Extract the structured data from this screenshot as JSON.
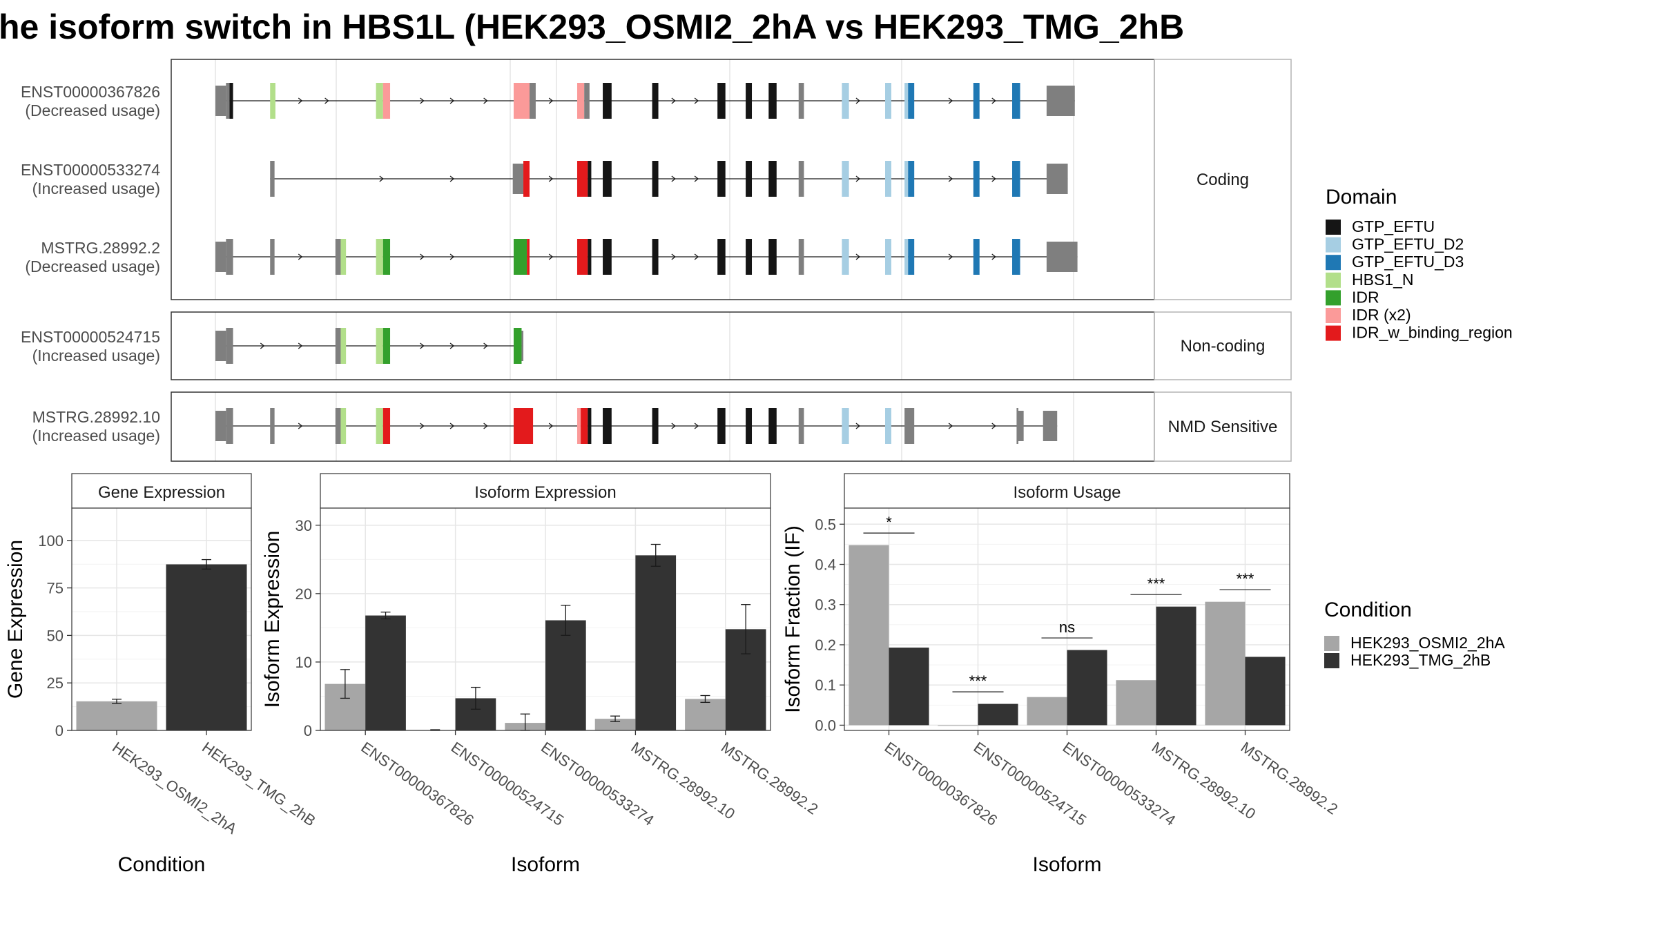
{
  "title": "he isoform switch in HBS1L (HEK293_OSMI2_2hA vs HEK293_TMG_2hB",
  "colors": {
    "GTP_EFTU": "#151515",
    "GTP_EFTU_D2": "#a6cee3",
    "GTP_EFTU_D3": "#1f78b4",
    "HBS1_N": "#b2df8a",
    "IDR": "#33a02c",
    "IDR (x2)": "#fb9a99",
    "IDR_w_binding_region": "#e31a1c",
    "exon_gray": "#7f7f7f",
    "cond_a": "#a6a6a6",
    "cond_b": "#333333"
  },
  "structure": {
    "domain_legend_title": "Domain",
    "domain_legend": [
      "GTP_EFTU",
      "GTP_EFTU_D2",
      "GTP_EFTU_D3",
      "HBS1_N",
      "IDR",
      "IDR (x2)",
      "IDR_w_binding_region"
    ],
    "panels": [
      {
        "label": "Coding",
        "transcripts": [
          0,
          1,
          2
        ]
      },
      {
        "label": "Non-coding",
        "transcripts": [
          3
        ]
      },
      {
        "label": "NMD Sensitive",
        "transcripts": [
          4
        ]
      }
    ],
    "transcripts": [
      {
        "name": "ENST00000367826",
        "usage": "(Decreased usage)",
        "segments": [
          {
            "f": "exon_gray",
            "s": 0.0,
            "e": 0.012,
            "h": 2
          },
          {
            "f": "exon_gray",
            "s": 0.012,
            "e": 0.016,
            "h": 3
          },
          {
            "f": "GTP_EFTU",
            "s": 0.016,
            "e": 0.02,
            "h": 3
          },
          {
            "f": "HBS1_N",
            "s": 0.062,
            "e": 0.068,
            "h": 3
          },
          {
            "f": "HBS1_N",
            "s": 0.182,
            "e": 0.19,
            "h": 3
          },
          {
            "f": "IDR (x2)",
            "s": 0.19,
            "e": 0.198,
            "h": 3
          },
          {
            "f": "IDR (x2)",
            "s": 0.338,
            "e": 0.356,
            "h": 3
          },
          {
            "f": "exon_gray",
            "s": 0.356,
            "e": 0.363,
            "h": 3
          },
          {
            "f": "IDR (x2)",
            "s": 0.41,
            "e": 0.418,
            "h": 3
          },
          {
            "f": "exon_gray",
            "s": 0.418,
            "e": 0.424,
            "h": 3
          },
          {
            "f": "GTP_EFTU",
            "s": 0.439,
            "e": 0.449,
            "h": 3
          },
          {
            "f": "GTP_EFTU",
            "s": 0.495,
            "e": 0.502,
            "h": 3
          },
          {
            "f": "GTP_EFTU",
            "s": 0.569,
            "e": 0.578,
            "h": 3
          },
          {
            "f": "GTP_EFTU",
            "s": 0.601,
            "e": 0.608,
            "h": 3
          },
          {
            "f": "GTP_EFTU",
            "s": 0.627,
            "e": 0.636,
            "h": 3
          },
          {
            "f": "exon_gray",
            "s": 0.661,
            "e": 0.667,
            "h": 3
          },
          {
            "f": "GTP_EFTU_D2",
            "s": 0.71,
            "e": 0.718,
            "h": 3
          },
          {
            "f": "GTP_EFTU_D2",
            "s": 0.759,
            "e": 0.766,
            "h": 3
          },
          {
            "f": "GTP_EFTU_D2",
            "s": 0.781,
            "e": 0.785,
            "h": 3
          },
          {
            "f": "GTP_EFTU_D3",
            "s": 0.785,
            "e": 0.792,
            "h": 3
          },
          {
            "f": "GTP_EFTU_D3",
            "s": 0.859,
            "e": 0.866,
            "h": 3
          },
          {
            "f": "GTP_EFTU_D3",
            "s": 0.903,
            "e": 0.912,
            "h": 3
          },
          {
            "f": "exon_gray",
            "s": 0.942,
            "e": 0.974,
            "h": 2
          }
        ],
        "arrows": [
          0.098,
          0.128,
          0.236,
          0.27,
          0.308,
          0.382,
          0.521,
          0.547,
          0.73,
          0.835,
          0.884
        ]
      },
      {
        "name": "ENST00000533274",
        "usage": "(Increased usage)",
        "segments": [
          {
            "f": "exon_gray",
            "s": 0.062,
            "e": 0.067,
            "h": 3
          },
          {
            "f": "exon_gray",
            "s": 0.337,
            "e": 0.349,
            "h": 2
          },
          {
            "f": "IDR_w_binding_region",
            "s": 0.349,
            "e": 0.356,
            "h": 3
          },
          {
            "f": "IDR_w_binding_region",
            "s": 0.41,
            "e": 0.422,
            "h": 3
          },
          {
            "f": "GTP_EFTU",
            "s": 0.422,
            "e": 0.426,
            "h": 3
          },
          {
            "f": "GTP_EFTU",
            "s": 0.439,
            "e": 0.449,
            "h": 3
          },
          {
            "f": "GTP_EFTU",
            "s": 0.495,
            "e": 0.502,
            "h": 3
          },
          {
            "f": "GTP_EFTU",
            "s": 0.569,
            "e": 0.578,
            "h": 3
          },
          {
            "f": "GTP_EFTU",
            "s": 0.601,
            "e": 0.608,
            "h": 3
          },
          {
            "f": "GTP_EFTU",
            "s": 0.627,
            "e": 0.636,
            "h": 3
          },
          {
            "f": "exon_gray",
            "s": 0.661,
            "e": 0.667,
            "h": 3
          },
          {
            "f": "GTP_EFTU_D2",
            "s": 0.71,
            "e": 0.718,
            "h": 3
          },
          {
            "f": "GTP_EFTU_D2",
            "s": 0.759,
            "e": 0.766,
            "h": 3
          },
          {
            "f": "GTP_EFTU_D2",
            "s": 0.781,
            "e": 0.785,
            "h": 3
          },
          {
            "f": "GTP_EFTU_D3",
            "s": 0.785,
            "e": 0.792,
            "h": 3
          },
          {
            "f": "GTP_EFTU_D3",
            "s": 0.859,
            "e": 0.866,
            "h": 3
          },
          {
            "f": "GTP_EFTU_D3",
            "s": 0.903,
            "e": 0.912,
            "h": 3
          },
          {
            "f": "exon_gray",
            "s": 0.942,
            "e": 0.966,
            "h": 2
          }
        ],
        "arrows": [
          0.19,
          0.27,
          0.382,
          0.521,
          0.547,
          0.73,
          0.835,
          0.884
        ]
      },
      {
        "name": "MSTRG.28992.2",
        "usage": "(Decreased usage)",
        "segments": [
          {
            "f": "exon_gray",
            "s": 0.0,
            "e": 0.012,
            "h": 2
          },
          {
            "f": "exon_gray",
            "s": 0.012,
            "e": 0.02,
            "h": 3
          },
          {
            "f": "exon_gray",
            "s": 0.062,
            "e": 0.067,
            "h": 3
          },
          {
            "f": "exon_gray",
            "s": 0.136,
            "e": 0.142,
            "h": 3
          },
          {
            "f": "HBS1_N",
            "s": 0.142,
            "e": 0.148,
            "h": 3
          },
          {
            "f": "HBS1_N",
            "s": 0.182,
            "e": 0.19,
            "h": 3
          },
          {
            "f": "IDR",
            "s": 0.19,
            "e": 0.198,
            "h": 3
          },
          {
            "f": "IDR",
            "s": 0.338,
            "e": 0.353,
            "h": 3
          },
          {
            "f": "IDR_w_binding_region",
            "s": 0.353,
            "e": 0.356,
            "h": 3
          },
          {
            "f": "IDR_w_binding_region",
            "s": 0.41,
            "e": 0.422,
            "h": 3
          },
          {
            "f": "GTP_EFTU",
            "s": 0.422,
            "e": 0.426,
            "h": 3
          },
          {
            "f": "GTP_EFTU",
            "s": 0.439,
            "e": 0.449,
            "h": 3
          },
          {
            "f": "GTP_EFTU",
            "s": 0.495,
            "e": 0.502,
            "h": 3
          },
          {
            "f": "GTP_EFTU",
            "s": 0.569,
            "e": 0.578,
            "h": 3
          },
          {
            "f": "GTP_EFTU",
            "s": 0.601,
            "e": 0.608,
            "h": 3
          },
          {
            "f": "GTP_EFTU",
            "s": 0.627,
            "e": 0.636,
            "h": 3
          },
          {
            "f": "exon_gray",
            "s": 0.661,
            "e": 0.667,
            "h": 3
          },
          {
            "f": "GTP_EFTU_D2",
            "s": 0.71,
            "e": 0.718,
            "h": 3
          },
          {
            "f": "GTP_EFTU_D2",
            "s": 0.759,
            "e": 0.766,
            "h": 3
          },
          {
            "f": "GTP_EFTU_D2",
            "s": 0.781,
            "e": 0.785,
            "h": 3
          },
          {
            "f": "GTP_EFTU_D3",
            "s": 0.785,
            "e": 0.792,
            "h": 3
          },
          {
            "f": "GTP_EFTU_D3",
            "s": 0.859,
            "e": 0.866,
            "h": 3
          },
          {
            "f": "GTP_EFTU_D3",
            "s": 0.903,
            "e": 0.912,
            "h": 3
          },
          {
            "f": "exon_gray",
            "s": 0.942,
            "e": 0.977,
            "h": 2
          }
        ],
        "arrows": [
          0.098,
          0.236,
          0.27,
          0.382,
          0.521,
          0.547,
          0.73,
          0.835,
          0.884
        ]
      },
      {
        "name": "ENST00000524715",
        "usage": "(Increased usage)",
        "segments": [
          {
            "f": "exon_gray",
            "s": 0.0,
            "e": 0.012,
            "h": 2
          },
          {
            "f": "exon_gray",
            "s": 0.012,
            "e": 0.02,
            "h": 3
          },
          {
            "f": "exon_gray",
            "s": 0.136,
            "e": 0.142,
            "h": 3
          },
          {
            "f": "HBS1_N",
            "s": 0.142,
            "e": 0.148,
            "h": 3
          },
          {
            "f": "HBS1_N",
            "s": 0.182,
            "e": 0.19,
            "h": 3
          },
          {
            "f": "IDR",
            "s": 0.19,
            "e": 0.198,
            "h": 3
          },
          {
            "f": "IDR",
            "s": 0.338,
            "e": 0.347,
            "h": 3
          },
          {
            "f": "exon_gray",
            "s": 0.347,
            "e": 0.349,
            "h": 2
          }
        ],
        "arrows": [
          0.055,
          0.098,
          0.236,
          0.27,
          0.308
        ]
      },
      {
        "name": "MSTRG.28992.10",
        "usage": "(Increased usage)",
        "segments": [
          {
            "f": "exon_gray",
            "s": 0.0,
            "e": 0.012,
            "h": 2
          },
          {
            "f": "exon_gray",
            "s": 0.012,
            "e": 0.02,
            "h": 3
          },
          {
            "f": "exon_gray",
            "s": 0.062,
            "e": 0.067,
            "h": 3
          },
          {
            "f": "exon_gray",
            "s": 0.136,
            "e": 0.142,
            "h": 3
          },
          {
            "f": "HBS1_N",
            "s": 0.142,
            "e": 0.148,
            "h": 3
          },
          {
            "f": "HBS1_N",
            "s": 0.182,
            "e": 0.19,
            "h": 3
          },
          {
            "f": "IDR_w_binding_region",
            "s": 0.19,
            "e": 0.198,
            "h": 3
          },
          {
            "f": "IDR_w_binding_region",
            "s": 0.338,
            "e": 0.36,
            "h": 3
          },
          {
            "f": "IDR (x2)",
            "s": 0.41,
            "e": 0.414,
            "h": 3
          },
          {
            "f": "IDR_w_binding_region",
            "s": 0.414,
            "e": 0.422,
            "h": 3
          },
          {
            "f": "GTP_EFTU",
            "s": 0.422,
            "e": 0.426,
            "h": 3
          },
          {
            "f": "GTP_EFTU",
            "s": 0.439,
            "e": 0.449,
            "h": 3
          },
          {
            "f": "GTP_EFTU",
            "s": 0.495,
            "e": 0.502,
            "h": 3
          },
          {
            "f": "GTP_EFTU",
            "s": 0.569,
            "e": 0.578,
            "h": 3
          },
          {
            "f": "GTP_EFTU",
            "s": 0.601,
            "e": 0.608,
            "h": 3
          },
          {
            "f": "GTP_EFTU",
            "s": 0.627,
            "e": 0.636,
            "h": 3
          },
          {
            "f": "exon_gray",
            "s": 0.661,
            "e": 0.667,
            "h": 3
          },
          {
            "f": "GTP_EFTU_D2",
            "s": 0.71,
            "e": 0.718,
            "h": 3
          },
          {
            "f": "GTP_EFTU_D2",
            "s": 0.759,
            "e": 0.766,
            "h": 3
          },
          {
            "f": "exon_gray",
            "s": 0.781,
            "e": 0.792,
            "h": 3
          },
          {
            "f": "exon_gray",
            "s": 0.908,
            "e": 0.91,
            "h": 3
          },
          {
            "f": "exon_gray",
            "s": 0.91,
            "e": 0.916,
            "h": 2
          },
          {
            "f": "exon_gray",
            "s": 0.938,
            "e": 0.954,
            "h": 2
          }
        ],
        "arrows": [
          0.098,
          0.236,
          0.27,
          0.308,
          0.382,
          0.521,
          0.547,
          0.73,
          0.835,
          0.884
        ]
      }
    ]
  },
  "chart_data": [
    {
      "type": "bar",
      "title": "Gene Expression",
      "xlabel": "Condition",
      "ylabel": "Gene Expression",
      "categories": [
        "HEK293_OSMI2_2hA",
        "HEK293_TMG_2hB"
      ],
      "ylim": [
        0,
        117
      ],
      "yticks": [
        "0",
        "25",
        "50",
        "75",
        "100"
      ],
      "series": [
        {
          "values": [
            15.3,
            87.4
          ],
          "errors": [
            1.1,
            2.5
          ]
        }
      ]
    },
    {
      "type": "bar",
      "title": "Isoform Expression",
      "xlabel": "Isoform",
      "ylabel": "Isoform Expression",
      "categories": [
        "ENST00000367826",
        "ENST00000524715",
        "ENST00000533274",
        "MSTRG.28992.10",
        "MSTRG.28992.2"
      ],
      "ylim": [
        0,
        32.5
      ],
      "yticks": [
        "0",
        "10",
        "20",
        "30"
      ],
      "series": [
        {
          "name": "HEK293_OSMI2_2hA",
          "values": [
            6.8,
            0.05,
            1.1,
            1.7,
            4.6
          ],
          "errors": [
            2.1,
            0.05,
            1.3,
            0.4,
            0.5
          ]
        },
        {
          "name": "HEK293_TMG_2hB",
          "values": [
            16.8,
            4.7,
            16.1,
            25.6,
            14.8
          ],
          "errors": [
            0.5,
            1.6,
            2.2,
            1.6,
            3.6
          ]
        }
      ]
    },
    {
      "type": "bar",
      "title": "Isoform Usage",
      "xlabel": "Isoform",
      "ylabel": "Isoform Fraction (IF)",
      "categories": [
        "ENST00000367826",
        "ENST00000524715",
        "ENST00000533274",
        "MSTRG.28992.10",
        "MSTRG.28992.2"
      ],
      "ylim": [
        -0.013,
        0.54
      ],
      "yticks": [
        "0.0",
        "0.1",
        "0.2",
        "0.3",
        "0.4",
        "0.5"
      ],
      "series": [
        {
          "name": "HEK293_OSMI2_2hA",
          "values": [
            0.448,
            0.0,
            0.07,
            0.112,
            0.307
          ]
        },
        {
          "name": "HEK293_TMG_2hB",
          "values": [
            0.193,
            0.053,
            0.187,
            0.295,
            0.17
          ]
        }
      ],
      "significance": [
        "*",
        "***",
        "ns",
        "***",
        "***"
      ],
      "legend_title": "Condition",
      "legend": [
        "HEK293_OSMI2_2hA",
        "HEK293_TMG_2hB"
      ]
    }
  ]
}
